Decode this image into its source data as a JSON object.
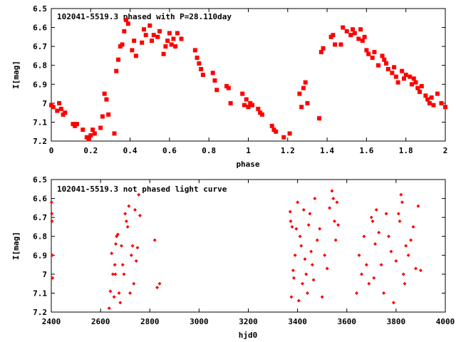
{
  "chart_data": [
    {
      "type": "scatter",
      "title": "102041-5519.3 phased with P=28.110day",
      "xlabel": "phase",
      "ylabel": "I[mag]",
      "xlim": [
        0,
        2
      ],
      "ylim": [
        7.2,
        6.5
      ],
      "y_inverted": true,
      "xticks": [
        "0",
        "0.2",
        "0.4",
        "0.6",
        "0.8",
        "1",
        "1.2",
        "1.4",
        "1.6",
        "1.8",
        "2"
      ],
      "yticks": [
        "6.5",
        "6.6",
        "6.7",
        "6.8",
        "6.9",
        "7",
        "7.1",
        "7.2"
      ],
      "grid": false,
      "color": "#ff0000",
      "marker": "star",
      "series": [
        {
          "x": [
            0.0,
            0.01,
            0.03,
            0.04,
            0.05,
            0.06,
            0.07,
            0.11,
            0.12,
            0.13,
            0.16,
            0.18,
            0.19,
            0.2,
            0.21,
            0.22,
            0.25,
            0.26,
            0.27,
            0.28,
            0.29,
            0.32,
            0.33,
            0.34,
            0.35,
            0.36,
            0.37,
            0.38,
            0.39,
            0.41,
            0.42,
            0.43,
            0.46,
            0.47,
            0.48,
            0.5,
            0.51,
            0.52,
            0.54,
            0.55,
            0.57,
            0.58,
            0.59,
            0.6,
            0.61,
            0.62,
            0.63,
            0.64,
            0.66,
            0.73,
            0.74,
            0.75,
            0.76,
            0.77,
            0.82,
            0.83,
            0.84,
            0.89,
            0.9,
            0.91,
            0.97,
            0.98,
            0.99,
            1.0,
            1.01,
            1.02,
            1.05,
            1.06,
            1.07,
            1.12,
            1.13,
            1.14,
            1.18,
            1.21,
            1.26,
            1.27,
            1.28,
            1.29,
            1.3,
            1.36,
            1.37,
            1.38,
            1.42,
            1.43,
            1.44,
            1.47,
            1.48,
            1.5,
            1.52,
            1.53,
            1.54,
            1.56,
            1.57,
            1.58,
            1.59,
            1.6,
            1.61,
            1.63,
            1.64,
            1.66,
            1.68,
            1.69,
            1.7,
            1.71,
            1.73,
            1.74,
            1.75,
            1.76,
            1.78,
            1.79,
            1.8,
            1.82,
            1.83,
            1.84,
            1.85,
            1.86,
            1.87,
            1.88,
            1.9,
            1.91,
            1.92,
            1.93,
            1.94,
            1.96,
            1.98,
            2.0
          ],
          "y": [
            7.01,
            7.02,
            7.04,
            7.0,
            7.03,
            7.06,
            7.05,
            7.11,
            7.12,
            7.11,
            7.14,
            7.18,
            7.19,
            7.17,
            7.14,
            7.16,
            7.13,
            7.07,
            6.95,
            6.98,
            7.06,
            7.16,
            6.83,
            6.77,
            6.7,
            6.69,
            6.62,
            6.56,
            6.58,
            6.72,
            6.67,
            6.75,
            6.68,
            6.61,
            6.64,
            6.59,
            6.67,
            6.64,
            6.65,
            6.62,
            6.74,
            6.7,
            6.67,
            6.63,
            6.69,
            6.66,
            6.7,
            6.63,
            6.66,
            6.72,
            6.76,
            6.79,
            6.82,
            6.85,
            6.84,
            6.88,
            6.93,
            6.91,
            6.92,
            7.0,
            6.95,
            7.01,
            6.98,
            7.02,
            7.0,
            7.01,
            7.03,
            7.05,
            7.06,
            7.12,
            7.14,
            7.15,
            7.18,
            7.16,
            6.95,
            7.02,
            6.92,
            6.89,
            7.0,
            7.08,
            6.73,
            6.71,
            6.65,
            6.64,
            6.69,
            6.69,
            6.6,
            6.62,
            6.64,
            6.61,
            6.63,
            6.66,
            6.61,
            6.67,
            6.65,
            6.72,
            6.74,
            6.76,
            6.73,
            6.8,
            6.75,
            6.77,
            6.79,
            6.82,
            6.84,
            6.81,
            6.86,
            6.89,
            6.83,
            6.87,
            6.85,
            6.86,
            6.9,
            6.87,
            6.89,
            6.92,
            6.94,
            6.91,
            6.96,
            6.98,
            7.0,
            6.97,
            7.01,
            6.95,
            7.0,
            7.02
          ]
        }
      ]
    },
    {
      "type": "scatter",
      "title": "102041-5519.3 not phased light curve",
      "xlabel": "hjd0",
      "ylabel": "I[mag]",
      "xlim": [
        2400,
        4000
      ],
      "ylim": [
        7.2,
        6.5
      ],
      "y_inverted": true,
      "xticks": [
        "2400",
        "2600",
        "2800",
        "3000",
        "3200",
        "3400",
        "3600",
        "3800",
        "4000"
      ],
      "yticks": [
        "6.5",
        "6.6",
        "6.7",
        "6.8",
        "6.9",
        "7",
        "7.1",
        "7.2"
      ],
      "grid": false,
      "color": "#ff0000",
      "marker": "diamond",
      "series": [
        {
          "x": [
            2401,
            2402,
            2403,
            2404,
            2405,
            2635,
            2640,
            2645,
            2650,
            2655,
            2658,
            2660,
            2662,
            2665,
            2670,
            2675,
            2680,
            2685,
            2690,
            2695,
            2700,
            2705,
            2710,
            2715,
            2720,
            2725,
            2730,
            2735,
            2740,
            2745,
            2750,
            2755,
            2760,
            2820,
            2830,
            2840,
            3370,
            3372,
            3375,
            3378,
            3382,
            3385,
            3390,
            3395,
            3400,
            3405,
            3410,
            3415,
            3420,
            3425,
            3430,
            3435,
            3440,
            3445,
            3450,
            3455,
            3460,
            3465,
            3470,
            3480,
            3490,
            3500,
            3510,
            3520,
            3530,
            3540,
            3545,
            3550,
            3555,
            3560,
            3565,
            3640,
            3650,
            3660,
            3670,
            3680,
            3690,
            3700,
            3705,
            3710,
            3715,
            3720,
            3730,
            3740,
            3750,
            3760,
            3770,
            3780,
            3790,
            3800,
            3810,
            3815,
            3820,
            3825,
            3830,
            3835,
            3840,
            3850,
            3860,
            3870,
            3880,
            3890,
            3900
          ],
          "y": [
            6.62,
            6.68,
            6.72,
            6.9,
            7.02,
            7.18,
            7.09,
            6.89,
            7.0,
            7.12,
            6.95,
            7.0,
            6.84,
            6.8,
            6.79,
            7.1,
            7.15,
            6.85,
            6.95,
            7.0,
            6.68,
            6.72,
            6.75,
            6.64,
            7.1,
            6.9,
            6.85,
            7.05,
            6.66,
            6.93,
            6.86,
            6.58,
            6.69,
            6.82,
            7.07,
            7.05,
            6.67,
            6.72,
            7.12,
            6.75,
            6.98,
            7.02,
            6.9,
            6.76,
            6.62,
            7.14,
            6.8,
            6.85,
            7.05,
            6.66,
            6.92,
            7.0,
            7.1,
            6.74,
            6.68,
            6.88,
            6.95,
            7.03,
            6.6,
            6.82,
            6.76,
            7.12,
            6.9,
            6.97,
            6.65,
            6.56,
            6.6,
            6.72,
            6.82,
            6.62,
            6.74,
            7.1,
            6.9,
            7.0,
            6.8,
            6.95,
            7.05,
            6.7,
            6.72,
            7.02,
            6.84,
            6.66,
            6.78,
            6.95,
            7.1,
            6.68,
            6.8,
            6.88,
            7.15,
            6.93,
            6.68,
            6.72,
            6.58,
            6.62,
            7.0,
            7.05,
            6.85,
            6.9,
            6.82,
            6.75,
            6.97,
            6.64,
            6.98
          ]
        }
      ]
    }
  ]
}
